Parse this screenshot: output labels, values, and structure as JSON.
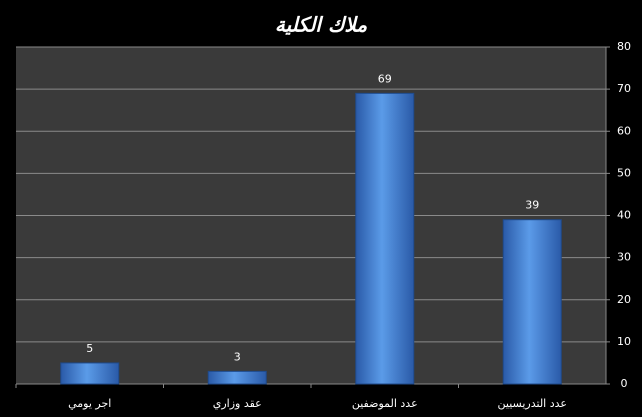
{
  "chart_data": {
    "type": "bar",
    "title": "ملاك الكلية",
    "categories": [
      "اجر يومي",
      "عقد وزاري",
      "عدد الموضفين",
      "عدد التدريسيين"
    ],
    "values": [
      5,
      3,
      69,
      39
    ],
    "color": "#4a86d8",
    "ylim": [
      0,
      80
    ],
    "yticks": [
      0,
      10,
      20,
      30,
      40,
      50,
      60,
      70,
      80
    ],
    "grid": true
  }
}
